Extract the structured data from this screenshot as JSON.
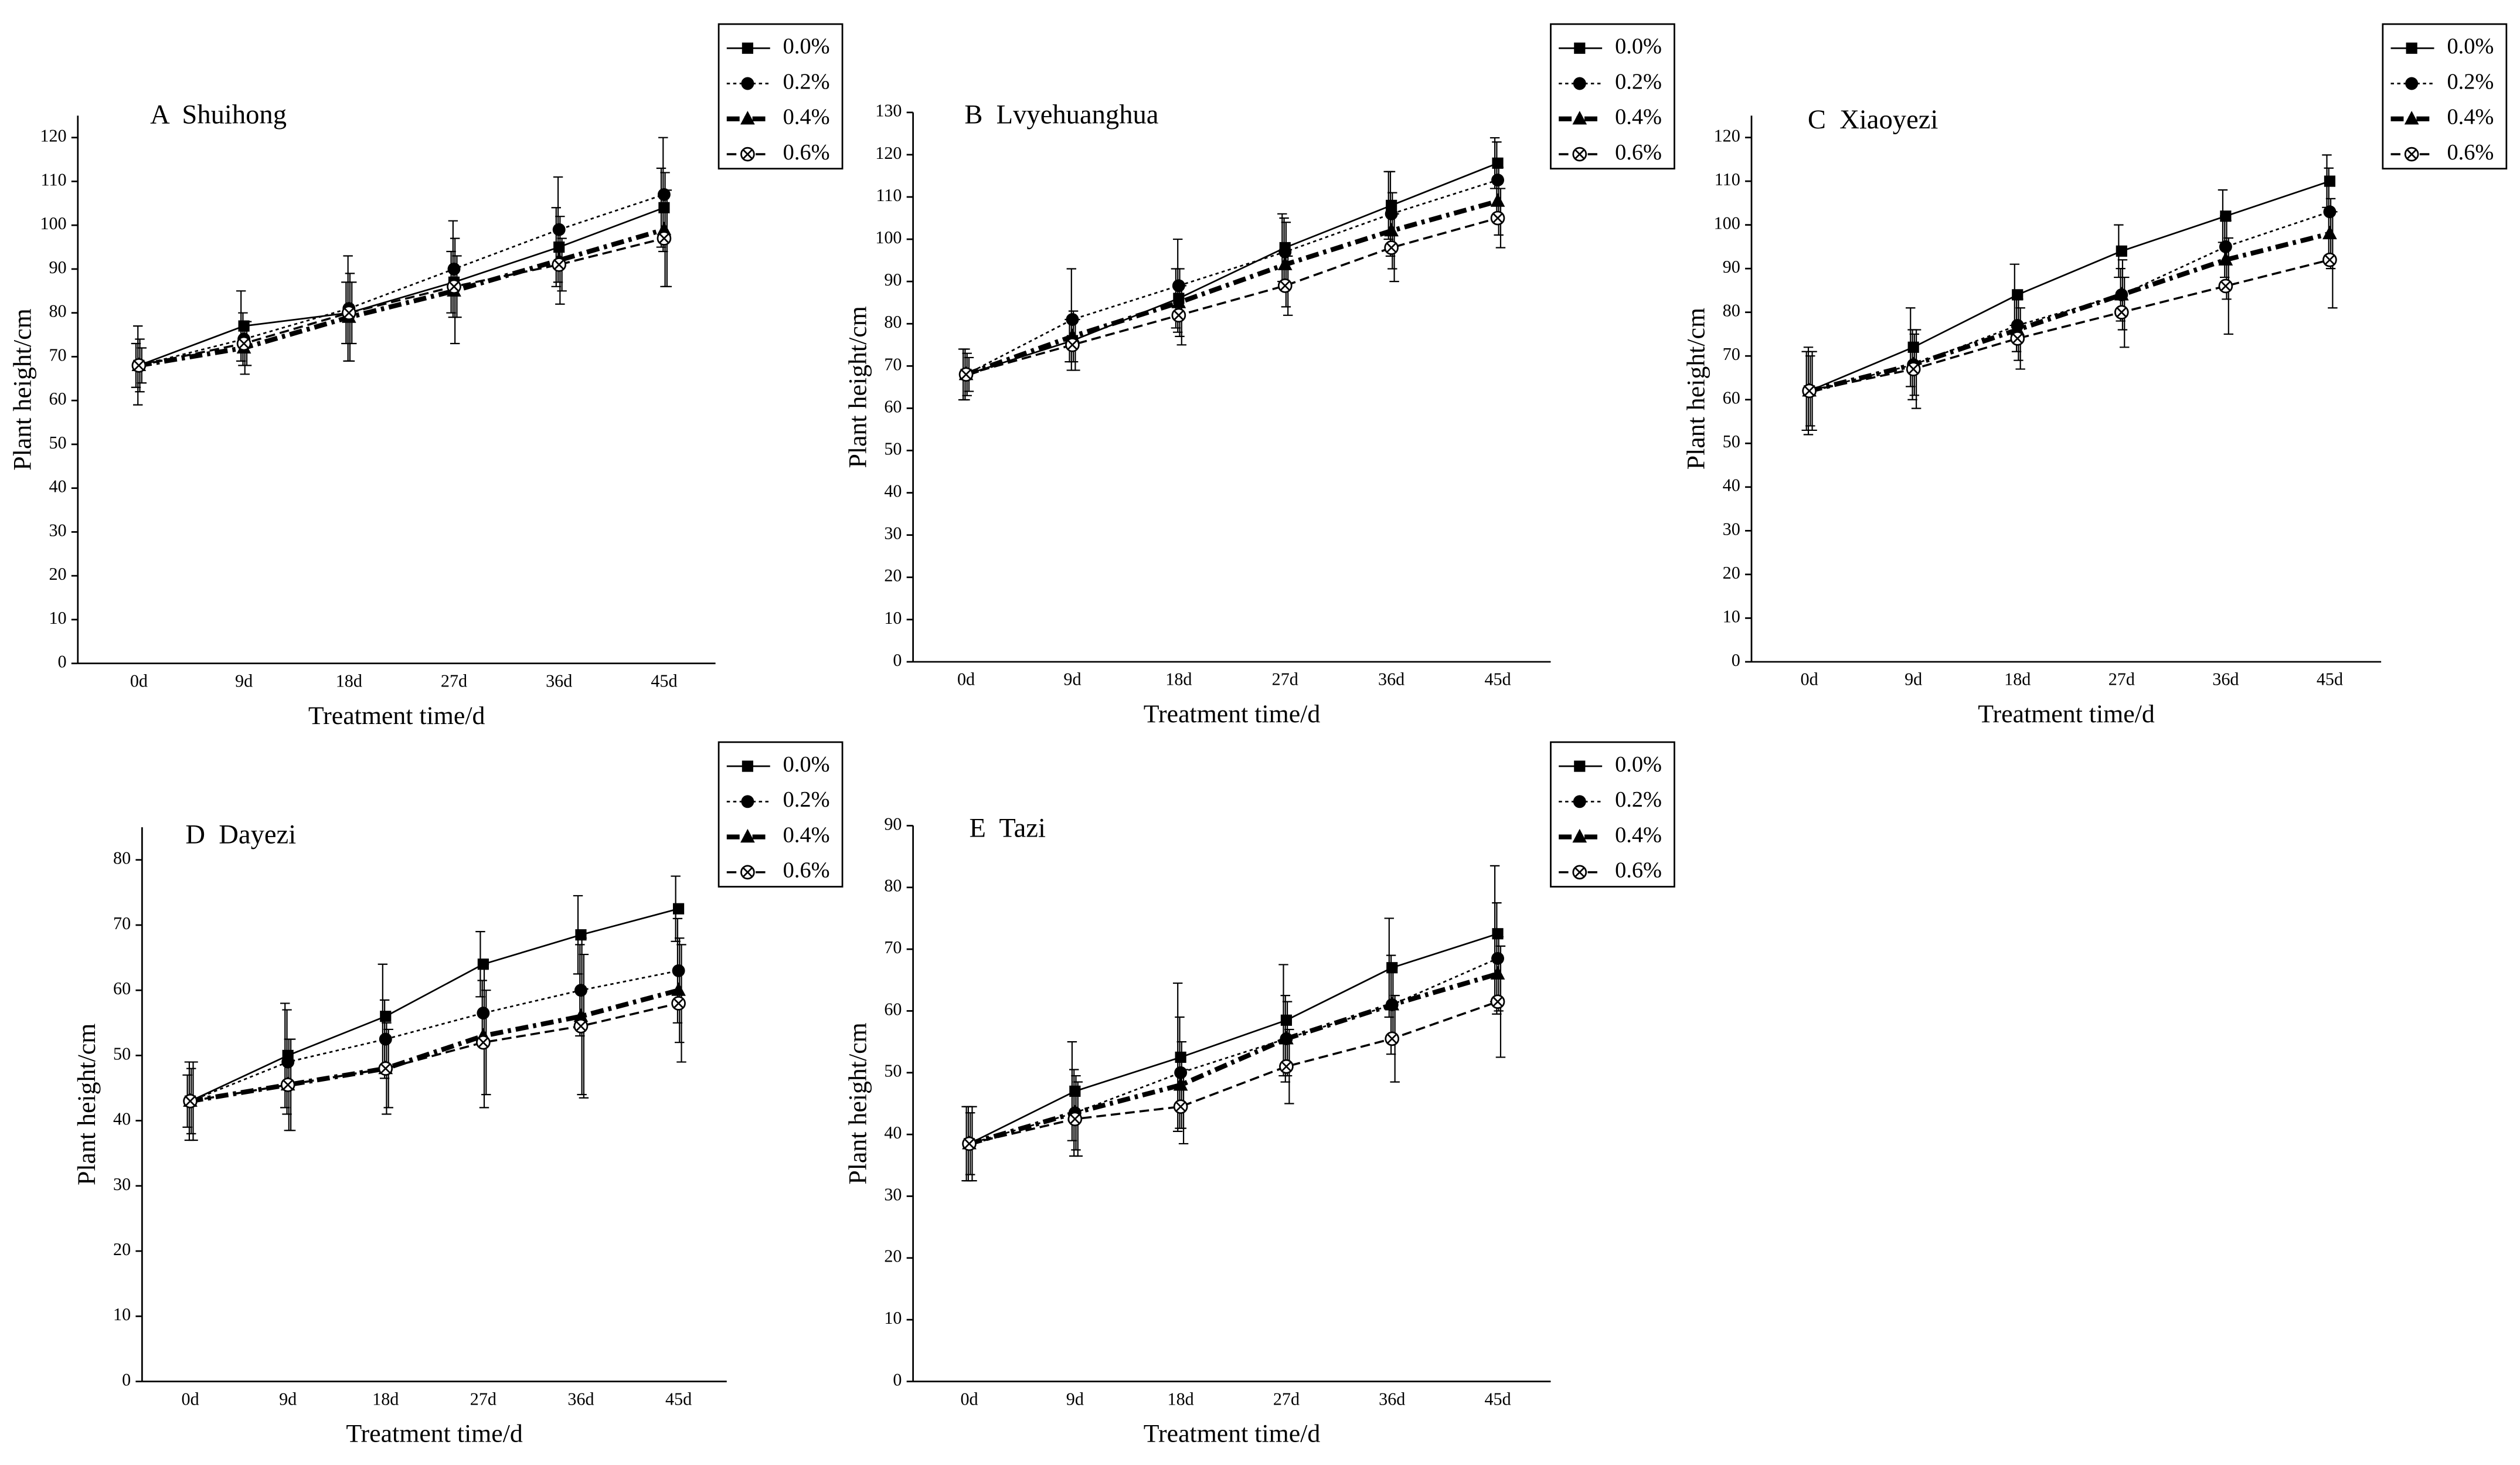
{
  "chart_data": [
    {
      "type": "line",
      "title": "A  Shuihong",
      "x_label": "Treatment time/d",
      "y_label": "Plant height/cm",
      "categories": [
        "0d",
        "9d",
        "18d",
        "27d",
        "36d",
        "45d"
      ],
      "series": [
        {
          "name": "0.0%",
          "color": "#000000",
          "values": [
            68,
            77,
            80,
            87,
            95,
            104
          ],
          "errors": [
            5,
            8,
            7,
            7,
            9,
            9
          ]
        },
        {
          "name": "0.2%",
          "color": "#000000",
          "values": [
            68,
            74,
            81,
            90,
            99,
            107
          ],
          "errors": [
            9,
            6,
            12,
            11,
            12,
            13
          ]
        },
        {
          "name": "0.4%",
          "color": "#000000",
          "values": [
            68,
            72,
            79,
            85,
            92,
            99
          ],
          "errors": [
            6,
            6,
            10,
            12,
            10,
            13
          ]
        },
        {
          "name": "0.6%",
          "color": "#000000",
          "values": [
            68,
            73,
            80,
            86,
            91,
            97
          ],
          "errors": [
            4,
            5,
            7,
            7,
            6,
            11
          ]
        }
      ],
      "ylim": [
        0,
        125
      ],
      "yticks": [
        0,
        10,
        20,
        30,
        40,
        50,
        60,
        70,
        80,
        90,
        100,
        110,
        120
      ],
      "legend": "right"
    },
    {
      "type": "line",
      "title": "B  Lvyehuanghua",
      "x_label": "Treatment time/d",
      "y_label": "Plant height/cm",
      "categories": [
        "0d",
        "9d",
        "18d",
        "27d",
        "36d",
        "45d"
      ],
      "series": [
        {
          "name": "0.0%",
          "color": "#000000",
          "values": [
            68,
            76,
            86,
            98,
            108,
            118
          ],
          "errors": [
            6,
            5,
            7,
            8,
            8,
            6
          ]
        },
        {
          "name": "0.2%",
          "color": "#000000",
          "values": [
            68,
            81,
            89,
            97,
            106,
            114
          ],
          "errors": [
            6,
            12,
            11,
            8,
            10,
            9
          ]
        },
        {
          "name": "0.4%",
          "color": "#000000",
          "values": [
            68,
            77,
            85,
            94,
            102,
            109
          ],
          "errors": [
            5,
            6,
            8,
            10,
            9,
            8
          ]
        },
        {
          "name": "0.6%",
          "color": "#000000",
          "values": [
            68,
            75,
            82,
            89,
            98,
            105
          ],
          "errors": [
            4,
            6,
            7,
            7,
            8,
            7
          ]
        }
      ],
      "ylim": [
        0,
        130
      ],
      "yticks": [
        0,
        10,
        20,
        30,
        40,
        50,
        60,
        70,
        80,
        90,
        100,
        110,
        120,
        130
      ],
      "legend": "right"
    },
    {
      "type": "line",
      "title": "C  Xiaoyezi",
      "x_label": "Treatment time/d",
      "y_label": "Plant height/cm",
      "categories": [
        "0d",
        "9d",
        "18d",
        "27d",
        "36d",
        "45d"
      ],
      "series": [
        {
          "name": "0.0%",
          "color": "#000000",
          "values": [
            62,
            72,
            84,
            94,
            102,
            110
          ],
          "errors": [
            9,
            9,
            7,
            6,
            6,
            6
          ]
        },
        {
          "name": "0.2%",
          "color": "#000000",
          "values": [
            62,
            68,
            77,
            84,
            95,
            103
          ],
          "errors": [
            10,
            8,
            6,
            6,
            7,
            10
          ]
        },
        {
          "name": "0.4%",
          "color": "#000000",
          "values": [
            62,
            68,
            76,
            84,
            92,
            98
          ],
          "errors": [
            8,
            7,
            7,
            8,
            9,
            8
          ]
        },
        {
          "name": "0.6%",
          "color": "#000000",
          "values": [
            62,
            67,
            74,
            80,
            86,
            92
          ],
          "errors": [
            9,
            9,
            7,
            8,
            11,
            11
          ]
        }
      ],
      "ylim": [
        0,
        125
      ],
      "yticks": [
        0,
        10,
        20,
        30,
        40,
        50,
        60,
        70,
        80,
        90,
        100,
        110,
        120
      ],
      "legend": "right"
    },
    {
      "type": "line",
      "title": "D  Dayezi",
      "x_label": "Treatment time/d",
      "y_label": "Plant height/cm",
      "categories": [
        "0d",
        "9d",
        "18d",
        "27d",
        "36d",
        "45d"
      ],
      "series": [
        {
          "name": "0.0%",
          "color": "#000000",
          "values": [
            43,
            50,
            56,
            64,
            68.5,
            72.5
          ],
          "errors": [
            4,
            8,
            8,
            5,
            6,
            5
          ]
        },
        {
          "name": "0.2%",
          "color": "#000000",
          "values": [
            43,
            49,
            52.5,
            56.5,
            60,
            63
          ],
          "errors": [
            6,
            8,
            6,
            5,
            7,
            8
          ]
        },
        {
          "name": "0.4%",
          "color": "#000000",
          "values": [
            43,
            45.5,
            48,
            53,
            56,
            60
          ],
          "errors": [
            5,
            7,
            7,
            11,
            12,
            8
          ]
        },
        {
          "name": "0.6%",
          "color": "#000000",
          "values": [
            43,
            45.5,
            48,
            52,
            54.5,
            58
          ],
          "errors": [
            6,
            7,
            6,
            8,
            11,
            9
          ]
        }
      ],
      "ylim": [
        0,
        85
      ],
      "yticks": [
        0,
        10,
        20,
        30,
        40,
        50,
        60,
        70,
        80
      ],
      "legend": "right"
    },
    {
      "type": "line",
      "title": "E  Tazi",
      "x_label": "Treatment time/d",
      "y_label": "Plant height/cm",
      "categories": [
        "0d",
        "9d",
        "18d",
        "27d",
        "36d",
        "45d"
      ],
      "series": [
        {
          "name": "0.0%",
          "color": "#000000",
          "values": [
            38.5,
            47,
            52.5,
            58.5,
            67,
            72.5
          ],
          "errors": [
            6,
            8,
            12,
            9,
            8,
            11
          ]
        },
        {
          "name": "0.2%",
          "color": "#000000",
          "values": [
            38.5,
            43.5,
            50,
            55.5,
            61,
            68.5
          ],
          "errors": [
            6,
            7,
            9,
            7,
            8,
            9
          ]
        },
        {
          "name": "0.4%",
          "color": "#000000",
          "values": [
            38.5,
            43.5,
            48,
            55.5,
            61,
            66
          ],
          "errors": [
            5,
            6,
            7,
            6,
            6,
            6
          ]
        },
        {
          "name": "0.6%",
          "color": "#000000",
          "values": [
            38.5,
            42.5,
            44.5,
            51,
            55.5,
            61.5
          ],
          "errors": [
            6,
            6,
            6,
            6,
            7,
            9
          ]
        }
      ],
      "ylim": [
        0,
        90
      ],
      "yticks": [
        0,
        10,
        20,
        30,
        40,
        50,
        60,
        70,
        80,
        90
      ],
      "legend": "right"
    }
  ]
}
